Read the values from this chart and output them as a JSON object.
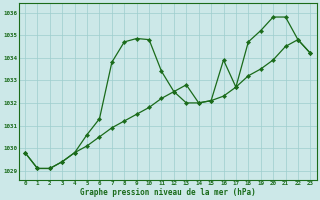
{
  "x": [
    0,
    1,
    2,
    3,
    4,
    5,
    6,
    7,
    8,
    9,
    10,
    11,
    12,
    13,
    14,
    15,
    16,
    17,
    18,
    19,
    20,
    21,
    22,
    23
  ],
  "line1": [
    1029.8,
    1029.1,
    1029.1,
    1029.4,
    1029.8,
    1030.6,
    1031.3,
    1033.8,
    1034.7,
    1034.85,
    1034.8,
    1033.4,
    1032.5,
    1032.0,
    1032.0,
    1032.1,
    1033.9,
    1032.7,
    1034.7,
    1035.2,
    1035.8,
    1035.8,
    1034.8,
    1034.2
  ],
  "line2": [
    1029.8,
    1029.1,
    1029.1,
    1029.4,
    1029.8,
    1030.1,
    1030.5,
    1030.9,
    1031.2,
    1031.5,
    1031.8,
    1032.2,
    1032.5,
    1032.8,
    1032.0,
    1032.1,
    1032.3,
    1032.7,
    1033.2,
    1033.5,
    1033.9,
    1034.5,
    1034.8,
    1034.2
  ],
  "ylim": [
    1028.6,
    1036.4
  ],
  "yticks": [
    1029,
    1030,
    1031,
    1032,
    1033,
    1034,
    1035,
    1036
  ],
  "xticks": [
    0,
    1,
    2,
    3,
    4,
    5,
    6,
    7,
    8,
    9,
    10,
    11,
    12,
    13,
    14,
    15,
    16,
    17,
    18,
    19,
    20,
    21,
    22,
    23
  ],
  "line_color": "#1a6b1a",
  "bg_color": "#cce8e8",
  "grid_color": "#9ecece",
  "xlabel": "Graphe pression niveau de la mer (hPa)",
  "xlabel_color": "#1a6b1a",
  "tick_color": "#1a6b1a",
  "markersize": 2.2,
  "linewidth": 0.9,
  "tick_fontsize": 4.2,
  "xlabel_fontsize": 5.5
}
